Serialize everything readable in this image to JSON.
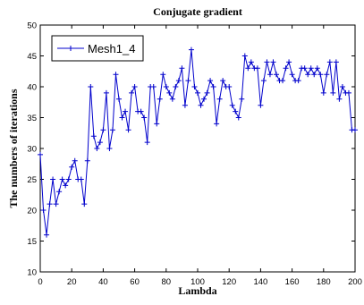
{
  "chart_data": {
    "type": "line",
    "title": "Conjugate gradient",
    "xlabel": "Lambda",
    "ylabel": "The numbers of iterations",
    "xlim": [
      0,
      200
    ],
    "ylim": [
      10,
      50
    ],
    "xticks": [
      0,
      20,
      40,
      60,
      80,
      100,
      120,
      140,
      160,
      180,
      200
    ],
    "yticks": [
      10,
      15,
      20,
      25,
      30,
      35,
      40,
      45,
      50
    ],
    "grid": false,
    "legend_position": "top-left",
    "marker": "+",
    "series": [
      {
        "name": "Mesh1_4",
        "color": "#0000cc",
        "x": [
          0,
          2,
          4,
          6,
          8,
          10,
          12,
          14,
          16,
          18,
          20,
          22,
          24,
          26,
          28,
          30,
          32,
          34,
          36,
          38,
          40,
          42,
          44,
          46,
          48,
          50,
          52,
          54,
          56,
          58,
          60,
          62,
          64,
          66,
          68,
          70,
          72,
          74,
          76,
          78,
          80,
          82,
          84,
          86,
          88,
          90,
          92,
          94,
          96,
          98,
          100,
          102,
          104,
          106,
          108,
          110,
          112,
          114,
          116,
          118,
          120,
          122,
          124,
          126,
          128,
          130,
          132,
          134,
          136,
          138,
          140,
          142,
          144,
          146,
          148,
          150,
          152,
          154,
          156,
          158,
          160,
          162,
          164,
          166,
          168,
          170,
          172,
          174,
          176,
          178,
          180,
          182,
          184,
          186,
          188,
          190,
          192,
          194,
          196,
          198,
          200
        ],
        "y": [
          29,
          20,
          16,
          21,
          25,
          21,
          23,
          25,
          24,
          25,
          27,
          28,
          25,
          25,
          21,
          28,
          40,
          32,
          30,
          31,
          33,
          39,
          30,
          33,
          42,
          38,
          35,
          36,
          33,
          39,
          40,
          36,
          36,
          35,
          31,
          40,
          40,
          34,
          38,
          42,
          40,
          39,
          38,
          40,
          41,
          43,
          37,
          41,
          46,
          40,
          39,
          37,
          38,
          39,
          41,
          40,
          34,
          38,
          41,
          40,
          40,
          37,
          36,
          35,
          38,
          45,
          43,
          44,
          43,
          43,
          37,
          41,
          44,
          42,
          44,
          42,
          41,
          41,
          43,
          44,
          42,
          41,
          41,
          43,
          43,
          42,
          43,
          42,
          43,
          42,
          39,
          42,
          44,
          39,
          44,
          38,
          40,
          39,
          39,
          33,
          33
        ]
      }
    ]
  }
}
